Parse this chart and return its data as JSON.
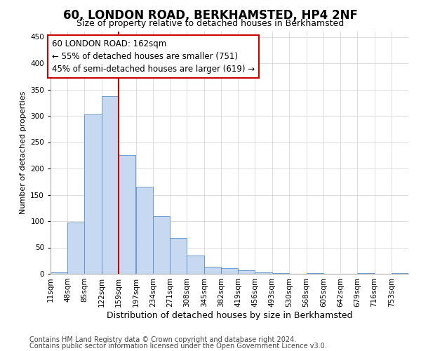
{
  "title": "60, LONDON ROAD, BERKHAMSTED, HP4 2NF",
  "subtitle": "Size of property relative to detached houses in Berkhamsted",
  "xlabel": "Distribution of detached houses by size in Berkhamsted",
  "ylabel": "Number of detached properties",
  "footer_line1": "Contains HM Land Registry data © Crown copyright and database right 2024.",
  "footer_line2": "Contains public sector information licensed under the Open Government Licence v3.0.",
  "annotation_line1": "60 LONDON ROAD: 162sqm",
  "annotation_line2": "← 55% of detached houses are smaller (751)",
  "annotation_line3": "45% of semi-detached houses are larger (619) →",
  "bin_edges": [
    11,
    48,
    85,
    122,
    159,
    197,
    234,
    271,
    308,
    345,
    382,
    419,
    456,
    493,
    530,
    568,
    605,
    642,
    679,
    716,
    753
  ],
  "bin_labels": [
    "11sqm",
    "48sqm",
    "85sqm",
    "122sqm",
    "159sqm",
    "197sqm",
    "234sqm",
    "271sqm",
    "308sqm",
    "345sqm",
    "382sqm",
    "419sqm",
    "456sqm",
    "493sqm",
    "530sqm",
    "568sqm",
    "605sqm",
    "642sqm",
    "679sqm",
    "716sqm",
    "753sqm"
  ],
  "bar_heights": [
    3,
    97,
    303,
    338,
    225,
    165,
    110,
    68,
    35,
    13,
    11,
    7,
    3,
    1,
    0,
    2,
    0,
    0,
    2,
    0,
    1
  ],
  "bar_color": "#c6d9f0",
  "bar_edge_color": "#5b8dc8",
  "vline_color": "#cc0000",
  "vline_x": 159,
  "ylim": [
    0,
    460
  ],
  "yticks": [
    0,
    50,
    100,
    150,
    200,
    250,
    300,
    350,
    400,
    450
  ],
  "bg_color": "#ffffff",
  "grid_color": "#d0d0d0",
  "title_fontsize": 12,
  "subtitle_fontsize": 9,
  "ylabel_fontsize": 8,
  "xlabel_fontsize": 9,
  "annotation_fontsize": 8.5,
  "footer_fontsize": 7,
  "tick_fontsize": 7.5
}
